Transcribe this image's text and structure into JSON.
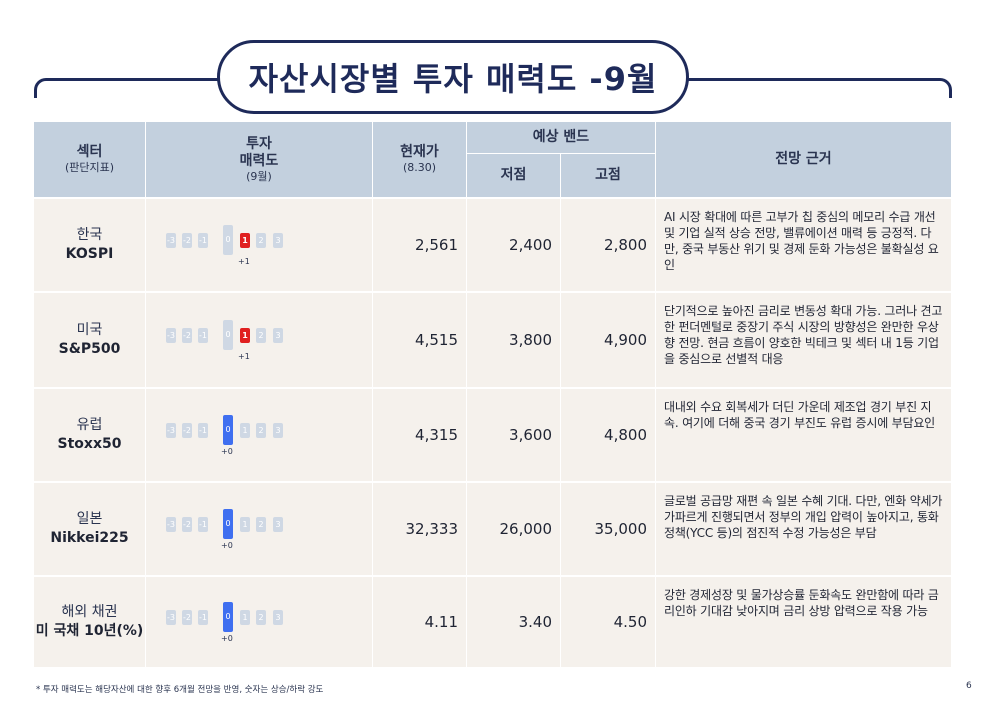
{
  "title": "자산시장별 투자 매력도 -9월",
  "headers": {
    "sector": "섹터",
    "sector_sub": "(판단지표)",
    "attract": "투자\n매력도",
    "attract_sub": "(9월)",
    "price": "현재가",
    "price_sub": "(8.30)",
    "band": "예상 밴드",
    "low": "저점",
    "high": "고점",
    "basis": "전망 근거"
  },
  "scale_labels": [
    "-3",
    "-2",
    "-1",
    "0",
    "1",
    "2",
    "3"
  ],
  "rows": [
    {
      "region": "한국",
      "index": "KOSPI",
      "score": 1,
      "score_label": "+1",
      "price": "2,561",
      "low": "2,400",
      "high": "2,800",
      "basis": "AI 시장 확대에 따른 고부가 칩 중심의 메모리 수급 개선 및 기업 실적 상승 전망, 밸류에이션 매력 등 긍정적. 다만, 중국 부동산 위기 및 경제 둔화 가능성은 불확실성 요인"
    },
    {
      "region": "미국",
      "index": "S&P500",
      "score": 1,
      "score_label": "+1",
      "price": "4,515",
      "low": "3,800",
      "high": "4,900",
      "basis": "단기적으로 높아진 금리로 변동성 확대 가능. 그러나 견고한 펀더멘털로 중장기 주식 시장의 방향성은 완만한 우상향 전망. 현금 흐름이 양호한 빅테크 및 섹터 내 1등 기업을 중심으로 선별적 대응"
    },
    {
      "region": "유럽",
      "index": "Stoxx50",
      "score": 0,
      "score_label": "+0",
      "price": "4,315",
      "low": "3,600",
      "high": "4,800",
      "basis": "대내외 수요 회복세가 더딘 가운데 제조업 경기 부진 지속. 여기에 더해 중국 경기 부진도 유럽 증시에 부담요인"
    },
    {
      "region": "일본",
      "index": "Nikkei225",
      "score": 0,
      "score_label": "+0",
      "price": "32,333",
      "low": "26,000",
      "high": "35,000",
      "basis": "글로벌 공급망 재편 속 일본 수혜 기대. 다만, 엔화 약세가 가파르게 진행되면서 정부의 개입 압력이 높아지고, 통화정책(YCC 등)의 점진적 수정 가능성은 부담"
    },
    {
      "region": "해외 채권",
      "index": "미 국채 10년(%)",
      "score": 0,
      "score_label": "+0",
      "price": "4.11",
      "low": "3.40",
      "high": "4.50",
      "basis": "강한 경제성장 및 물가상승률 둔화속도 완만함에 따라 금리인하 기대감 낮아지며 금리 상방 압력으로 작용 가능"
    }
  ],
  "footnote": "* 투자 매력도는 해당자산에 대한 향후 6개월 전망을 반영, 숫자는 상승/하락 강도",
  "page_number": "6",
  "colors": {
    "navy": "#1e2a5a",
    "header_bg": "#c3d0de",
    "row_bg": "#f5f1ec",
    "positive": "#e02020",
    "neutral": "#3f6ff0",
    "inactive": "#cfd8e4"
  }
}
